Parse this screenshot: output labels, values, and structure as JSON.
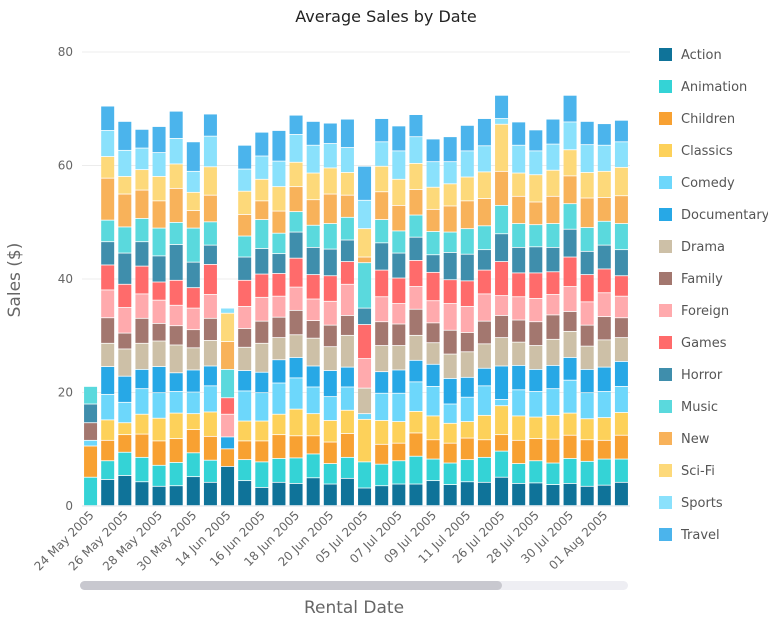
{
  "chart_data": {
    "type": "bar",
    "stacked": true,
    "title": "Average Sales by Date",
    "xlabel": "Rental Date",
    "ylabel": "Sales ($)",
    "ylim": [
      0,
      80
    ],
    "yticks": [
      0,
      20,
      40,
      60,
      80
    ],
    "grid": true,
    "legend_position": "right",
    "categories": [
      "24 May 2005",
      "25 May 2005",
      "26 May 2005",
      "27 May 2005",
      "28 May 2005",
      "29 May 2005",
      "30 May 2005",
      "31 May 2005",
      "14 Jun 2005",
      "15 Jun 2005",
      "16 Jun 2005",
      "17 Jun 2005",
      "18 Jun 2005",
      "19 Jun 2005",
      "20 Jun 2005",
      "21 Jun 2005",
      "05 Jul 2005",
      "06 Jul 2005",
      "07 Jul 2005",
      "08 Jul 2005",
      "09 Jul 2005",
      "10 Jul 2005",
      "11 Jul 2005",
      "12 Jul 2005",
      "26 Jul 2005",
      "27 Jul 2005",
      "28 Jul 2005",
      "29 Jul 2005",
      "30 Jul 2005",
      "31 Jul 2005",
      "01 Aug 2005",
      "02 Aug 2005"
    ],
    "xtick_labels": [
      "24 May 2005",
      "",
      "26 May 2005",
      "",
      "28 May 2005",
      "",
      "30 May 2005",
      "",
      "14 Jun 2005",
      "",
      "16 Jun 2005",
      "",
      "18 Jun 2005",
      "",
      "20 Jun 2005",
      "",
      "05 Jul 2005",
      "",
      "07 Jul 2005",
      "",
      "09 Jul 2005",
      "",
      "11 Jul 2005",
      "",
      "26 Jul 2005",
      "",
      "28 Jul 2005",
      "",
      "30 Jul 2005",
      "",
      "01 Aug 2005",
      ""
    ],
    "series": [
      {
        "name": "Action",
        "color": "#0f7399",
        "values": [
          0,
          4.6,
          5.3,
          4.2,
          3.4,
          3.5,
          5.1,
          4.1,
          6.9,
          4.4,
          3.2,
          4.1,
          3.9,
          4.9,
          3.8,
          4.8,
          3.1,
          3.5,
          3.8,
          3.8,
          4.4,
          3.7,
          4.2,
          4.1,
          5.0,
          3.9,
          4.0,
          3.7,
          3.9,
          3.4,
          3.6,
          4.1
        ]
      },
      {
        "name": "Animation",
        "color": "#34d3d6",
        "values": [
          5.0,
          3.3,
          4.1,
          4.3,
          3.7,
          4.1,
          4.2,
          3.9,
          0,
          3.7,
          4.5,
          4.2,
          4.5,
          4.2,
          3.6,
          3.7,
          4.6,
          3.8,
          4.1,
          4.9,
          3.8,
          3.8,
          3.9,
          4.4,
          4.6,
          3.5,
          3.9,
          3.8,
          4.4,
          4.4,
          4.6,
          4.1
        ]
      },
      {
        "name": "Children",
        "color": "#f8a132",
        "values": [
          5.5,
          3.6,
          3.1,
          4.1,
          4.3,
          4.2,
          4.1,
          4.2,
          3.1,
          3.3,
          3.7,
          4.2,
          3.9,
          3.2,
          3.8,
          4.2,
          0,
          3.5,
          3.1,
          4.1,
          3.4,
          3.5,
          3.8,
          3.1,
          2.9,
          4.1,
          3.9,
          4.2,
          4.1,
          3.8,
          3.3,
          4.2
        ]
      },
      {
        "name": "Classics",
        "color": "#fdd15a",
        "values": [
          0,
          3.6,
          2.1,
          3.5,
          4.0,
          4.5,
          2.8,
          4.3,
          0,
          3.5,
          3.5,
          3.6,
          4.7,
          3.9,
          3.8,
          4.1,
          7.5,
          4.2,
          3.8,
          3.8,
          4.2,
          3.5,
          2.9,
          4.3,
          5.1,
          4.3,
          3.8,
          4.2,
          3.9,
          3.7,
          4.0,
          4.0
        ]
      },
      {
        "name": "Comedy",
        "color": "#6dd7fb",
        "values": [
          1.0,
          4.5,
          3.6,
          4.5,
          4.5,
          3.8,
          3.8,
          4.6,
          0,
          5.3,
          5.0,
          5.5,
          5.5,
          4.7,
          4.2,
          4.1,
          1.0,
          4.8,
          5.0,
          5.2,
          5.2,
          3.4,
          4.3,
          5.2,
          1.1,
          4.6,
          4.5,
          4.7,
          5.8,
          4.6,
          4.6,
          4.6
        ]
      },
      {
        "name": "Documentary",
        "color": "#27a8e6",
        "values": [
          0,
          4.9,
          4.6,
          3.4,
          4.6,
          3.3,
          3.9,
          3.5,
          2.1,
          3.6,
          3.6,
          4.1,
          3.6,
          3.7,
          4.6,
          3.5,
          0,
          3.8,
          4.1,
          3.8,
          3.9,
          4.5,
          3.5,
          3.1,
          5.9,
          4.3,
          3.9,
          4.1,
          4.0,
          4.1,
          4.3,
          4.4
        ]
      },
      {
        "name": "Drama",
        "color": "#cdc0a7",
        "values": [
          0,
          4.1,
          4.8,
          4.6,
          4.5,
          4.9,
          3.9,
          4.5,
          0,
          4.1,
          5.1,
          3.9,
          4.0,
          4.9,
          4.2,
          5.6,
          4.5,
          4.6,
          4.3,
          4.4,
          3.8,
          4.3,
          4.5,
          4.3,
          5.0,
          4.1,
          4.2,
          4.6,
          4.6,
          4.1,
          4.8,
          4.2
        ]
      },
      {
        "name": "Family",
        "color": "#a3776f",
        "values": [
          3.1,
          4.5,
          2.8,
          4.4,
          3.1,
          3.4,
          3.2,
          3.9,
          0,
          3.3,
          3.9,
          3.6,
          4.3,
          3.1,
          3.8,
          3.5,
          0,
          4.2,
          3.8,
          4.6,
          3.5,
          4.2,
          3.4,
          4.0,
          3.9,
          3.9,
          4.2,
          4.3,
          3.5,
          3.7,
          4.1,
          3.5
        ]
      },
      {
        "name": "Foreign",
        "color": "#ffaaad",
        "values": [
          0,
          4.9,
          4.5,
          4.3,
          4.1,
          3.6,
          3.8,
          4.2,
          4.0,
          3.9,
          4.2,
          3.7,
          4.1,
          3.8,
          4.2,
          5.5,
          5.2,
          4.4,
          3.6,
          4.0,
          3.9,
          4.7,
          4.6,
          4.8,
          3.5,
          4.1,
          4.1,
          3.6,
          4.4,
          4.1,
          4.2,
          3.8
        ]
      },
      {
        "name": "Games",
        "color": "#ff6b6b",
        "values": [
          0,
          4.4,
          4.1,
          4.9,
          3.2,
          4.4,
          3.6,
          5.3,
          2.9,
          4.6,
          4.1,
          4.0,
          5.1,
          4.3,
          4.5,
          4.0,
          6.0,
          4.7,
          4.5,
          4.6,
          5.0,
          4.2,
          4.5,
          4.2,
          6.0,
          4.2,
          4.5,
          4.0,
          5.2,
          4.8,
          4.2,
          3.6
        ]
      },
      {
        "name": "Horror",
        "color": "#3f8eac",
        "values": [
          3.3,
          4.1,
          5.5,
          4.3,
          4.6,
          6.3,
          4.5,
          3.4,
          0,
          4.1,
          4.5,
          3.5,
          4.6,
          4.8,
          4.7,
          3.8,
          2.9,
          4.8,
          4.4,
          4.1,
          3.1,
          4.8,
          4.7,
          3.6,
          4.9,
          4.5,
          4.6,
          4.3,
          4.9,
          4.1,
          4.2,
          4.6
        ]
      },
      {
        "name": "Music",
        "color": "#5ad9dd",
        "values": [
          3.1,
          3.8,
          4.6,
          4.1,
          4.9,
          3.9,
          6.0,
          4.1,
          5.0,
          3.7,
          5.1,
          3.6,
          3.6,
          3.9,
          4.5,
          4.0,
          8.0,
          4.1,
          3.9,
          3.9,
          4.1,
          3.6,
          4.5,
          4.2,
          5.0,
          4.2,
          3.9,
          4.2,
          4.5,
          4.2,
          4.2,
          4.6
        ]
      },
      {
        "name": "New",
        "color": "#f8b25a",
        "values": [
          0,
          7.4,
          5.8,
          5.0,
          4.8,
          6.0,
          3.1,
          4.7,
          4.9,
          3.8,
          3.3,
          3.9,
          4.4,
          4.5,
          5.2,
          3.9,
          1.0,
          4.9,
          4.5,
          4.5,
          3.9,
          4.6,
          4.9,
          4.8,
          6.0,
          4.8,
          4.0,
          4.8,
          4.9,
          5.2,
          4.2,
          4.9
        ]
      },
      {
        "name": "Sci-Fi",
        "color": "#fdd97a",
        "values": [
          0,
          3.8,
          3.1,
          3.6,
          4.3,
          4.3,
          3.2,
          5.0,
          5.0,
          4.1,
          3.8,
          4.3,
          4.3,
          4.7,
          4.6,
          4.0,
          5.0,
          4.5,
          4.6,
          4.6,
          3.9,
          3.9,
          4.2,
          4.7,
          8.3,
          4.1,
          4.8,
          4.6,
          4.6,
          4.5,
          4.6,
          5.0
        ]
      },
      {
        "name": "Sports",
        "color": "#8ae1fc",
        "values": [
          0,
          4.6,
          4.6,
          3.8,
          4.2,
          4.5,
          3.7,
          5.4,
          0.9,
          3.9,
          4.1,
          4.5,
          4.9,
          4.9,
          4.3,
          4.4,
          5.0,
          4.3,
          5.0,
          4.7,
          4.5,
          3.9,
          4.6,
          4.6,
          1.0,
          4.9,
          4.2,
          4.6,
          4.9,
          4.9,
          4.6,
          4.5
        ]
      },
      {
        "name": "Travel",
        "color": "#4bb4ec",
        "values": [
          0,
          4.3,
          5.1,
          3.3,
          4.6,
          4.8,
          5.2,
          3.9,
          0,
          4.2,
          4.2,
          5.4,
          3.4,
          4.2,
          3.6,
          5.0,
          6.0,
          4.1,
          4.4,
          3.9,
          4.0,
          4.4,
          4.5,
          4.8,
          4.1,
          4.1,
          3.7,
          4.4,
          4.7,
          4.1,
          3.8,
          3.8
        ]
      }
    ]
  }
}
